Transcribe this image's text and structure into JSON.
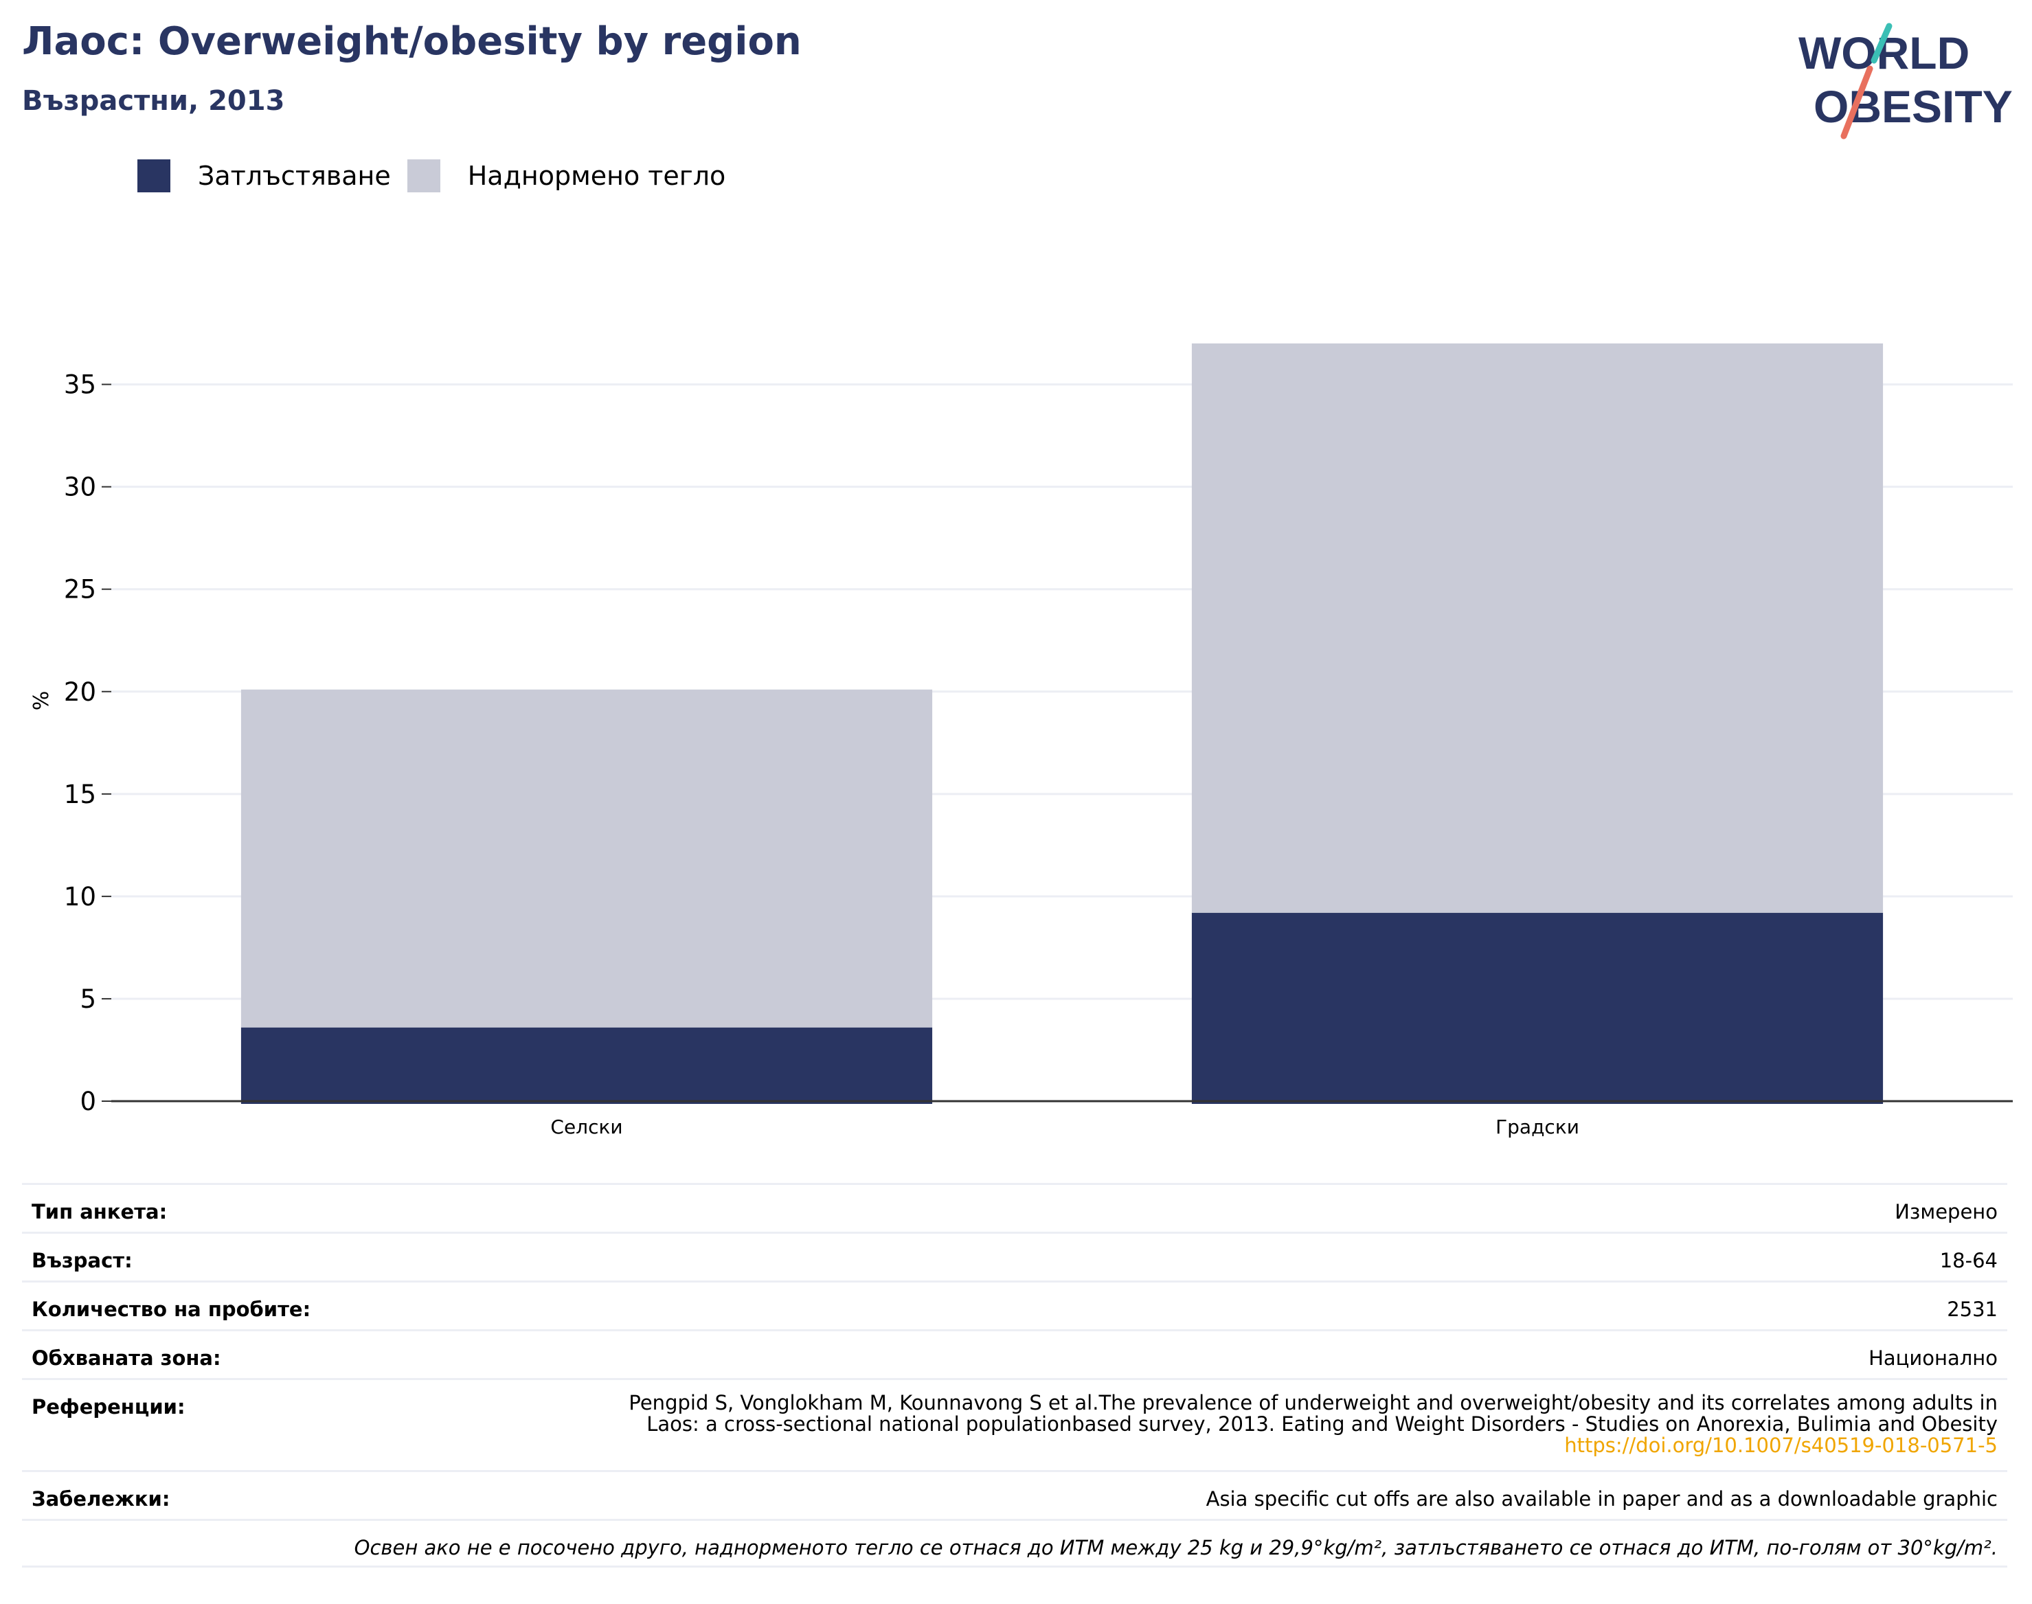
{
  "header": {
    "title": "Лаос: Overweight/obesity by region",
    "subtitle": "Възрастни, 2013"
  },
  "logo": {
    "line1": "WORLD",
    "line2": "OBESITY"
  },
  "legend": [
    {
      "label": "Затлъстяване",
      "color": "#293562"
    },
    {
      "label": "Наднормено тегло",
      "color": "#c9cbd7"
    }
  ],
  "chart_data": {
    "type": "bar",
    "stacked": true,
    "categories": [
      "Селски",
      "Градски"
    ],
    "series": [
      {
        "name": "Затлъстяване",
        "values": [
          3.6,
          9.2
        ],
        "color": "#293562"
      },
      {
        "name": "Наднормено тегло",
        "values": [
          16.5,
          27.8
        ],
        "color": "#c9cbd7"
      }
    ],
    "ylabel": "%",
    "ylim": [
      0,
      37.2
    ],
    "yticks": [
      0,
      5,
      10,
      15,
      20,
      25,
      30,
      35
    ],
    "grid": true,
    "legend_position": "top-left"
  },
  "info": {
    "survey_type": {
      "label": "Тип анкета:",
      "value": "Измерено"
    },
    "age": {
      "label": "Възраст:",
      "value": "18-64"
    },
    "sample_size": {
      "label": "Количество на пробите:",
      "value": "2531"
    },
    "area": {
      "label": "Обхваната зона:",
      "value": "Национално"
    },
    "references": {
      "label": "Референции:",
      "line1": "Pengpid S, Vonglokham M, Kounnavong S et al.The prevalence of underweight and overweight/obesity and its correlates among adults in",
      "line2": "Laos: a cross-sectional national populationbased survey, 2013. Eating and Weight Disorders - Studies on Anorexia, Bulimia and Obesity",
      "link": "https://doi.org/10.1007/s40519-018-0571-5"
    },
    "notes": {
      "label": "Забележки:",
      "value": "Asia specific cut offs are also available in paper and as a downloadable graphic"
    },
    "footnote": "Освен ако не е посочено друго, наднорменото тегло се отнася до ИТМ между 25 kg и 29,9°kg/m², затлъстяването се отнася до ИТМ, по-голям от 30°kg/m²."
  }
}
